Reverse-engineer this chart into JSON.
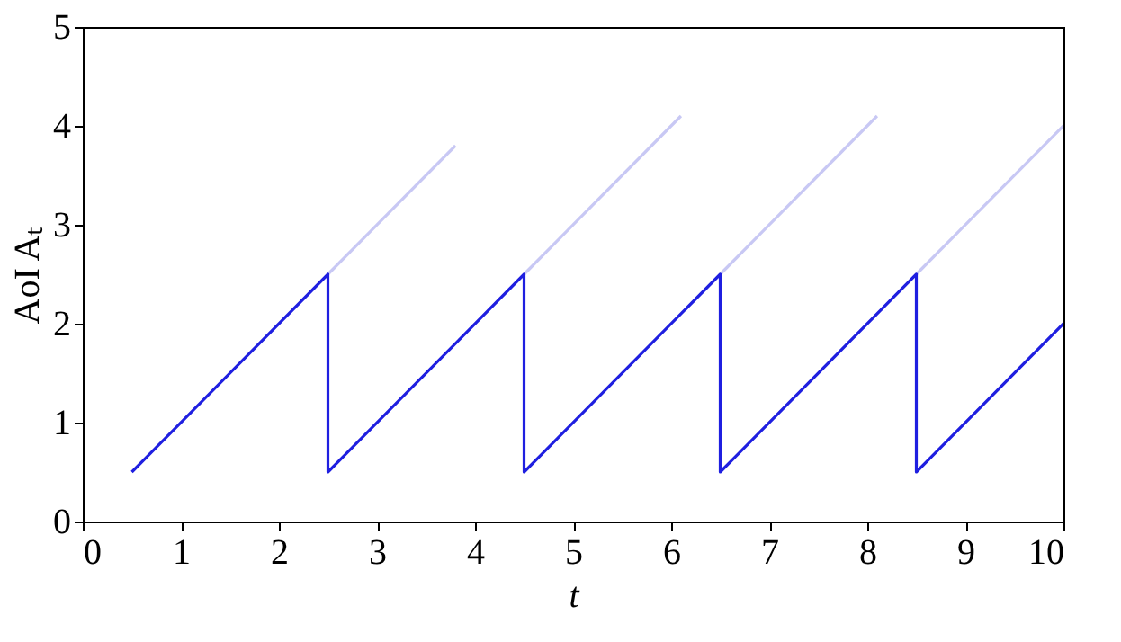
{
  "chart_data": {
    "type": "line",
    "xlabel": "t",
    "ylabel": "AoI Aₜ",
    "xlim": [
      0,
      10
    ],
    "ylim": [
      0,
      5
    ],
    "xticks": [
      0,
      1,
      2,
      3,
      4,
      5,
      6,
      7,
      8,
      9,
      10
    ],
    "yticks": [
      0,
      1,
      2,
      3,
      4,
      5
    ],
    "grid": false,
    "marker": "none",
    "line_style": "solid",
    "series": [
      {
        "color": "#c8c8f4",
        "x": [
          2.5,
          3.8
        ],
        "values": [
          2.5,
          3.8
        ]
      },
      {
        "color": "#c8c8f4",
        "x": [
          4.5,
          6.1
        ],
        "values": [
          2.5,
          4.1
        ]
      },
      {
        "color": "#c8c8f4",
        "x": [
          6.5,
          8.1
        ],
        "values": [
          2.5,
          4.1
        ]
      },
      {
        "color": "#c8c8f4",
        "x": [
          8.5,
          10
        ],
        "values": [
          2.5,
          4.0
        ]
      },
      {
        "color": "#1f1fe0",
        "x": [
          0.5,
          2.5,
          2.5,
          4.5,
          4.5,
          6.5,
          6.5,
          8.5,
          8.5,
          10
        ],
        "values": [
          0.5,
          2.5,
          0.5,
          2.5,
          0.5,
          2.5,
          0.5,
          2.5,
          0.5,
          2
        ]
      }
    ]
  }
}
